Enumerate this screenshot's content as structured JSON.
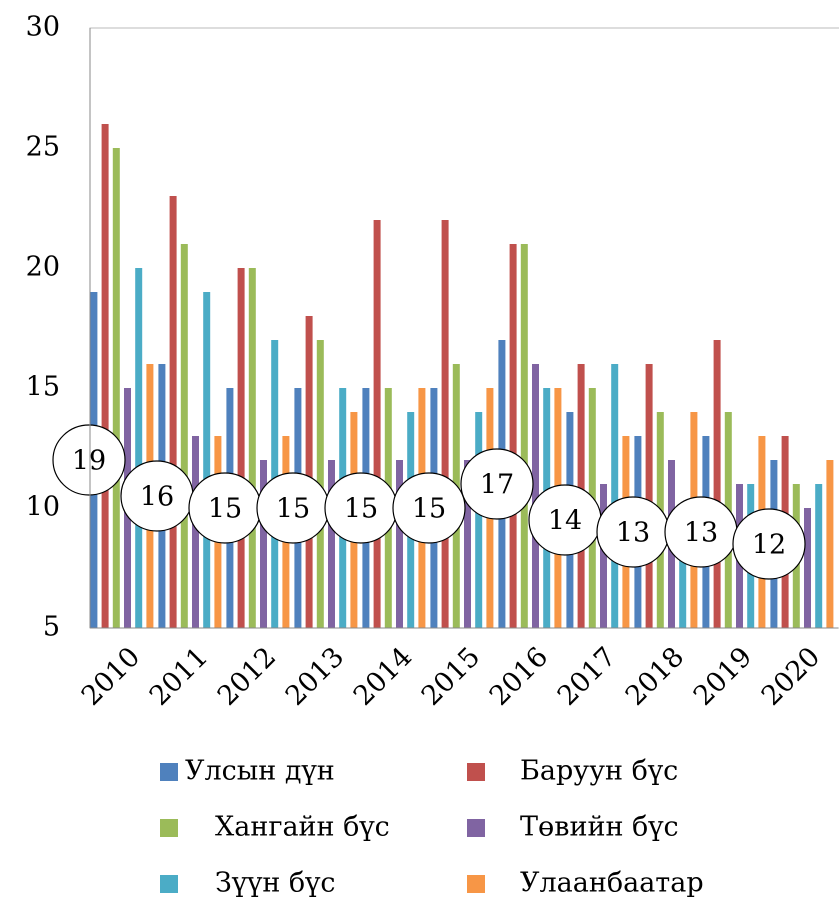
{
  "chart_data": {
    "type": "bar",
    "categories": [
      "2010",
      "2011",
      "2012",
      "2013",
      "2014",
      "2015",
      "2016",
      "2017",
      "2018",
      "2019",
      "2020"
    ],
    "series": [
      {
        "name": "Улсын дүн",
        "color": "#4f81bd",
        "values": [
          19,
          16,
          15,
          15,
          15,
          15,
          17,
          14,
          13,
          13,
          12
        ]
      },
      {
        "name": "Баруун бүс",
        "color": "#c0504d",
        "values": [
          26,
          23,
          20,
          18,
          22,
          22,
          21,
          16,
          16,
          17,
          13
        ]
      },
      {
        "name": "Хангайн бүс",
        "color": "#9bbb59",
        "values": [
          25,
          21,
          20,
          17,
          15,
          16,
          21,
          15,
          14,
          14,
          11
        ]
      },
      {
        "name": "Төвийн бүс",
        "color": "#8064a2",
        "values": [
          15,
          13,
          12,
          12,
          12,
          12,
          16,
          11,
          12,
          11,
          10
        ]
      },
      {
        "name": "Зүүн бүс",
        "color": "#4bacc6",
        "values": [
          20,
          19,
          17,
          15,
          14,
          14,
          15,
          16,
          8,
          11,
          11
        ]
      },
      {
        "name": "Улаанбаатар",
        "color": "#f79646",
        "values": [
          16,
          13,
          13,
          14,
          15,
          15,
          15,
          13,
          14,
          13,
          12
        ]
      }
    ],
    "ylim": [
      5,
      30
    ],
    "yticks": [
      5,
      10,
      15,
      20,
      25,
      30
    ],
    "grid": false,
    "legend": "bottom"
  }
}
